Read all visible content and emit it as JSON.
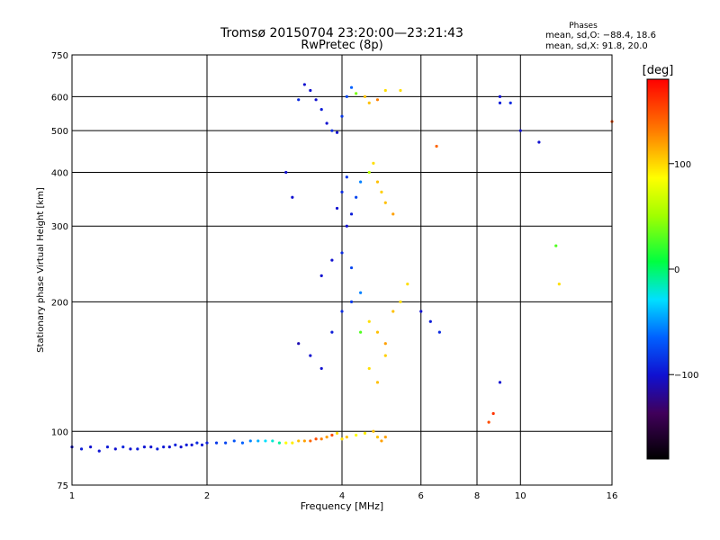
{
  "chart_data": {
    "type": "scatter",
    "title": "Tromsø 20150704 23:20:00—23:21:43",
    "subtitle": "RwPretec (8p)",
    "xlabel": "Frequency [MHz]",
    "ylabel": "Stationary phase Virtual Height [km]",
    "x_scale": "log",
    "y_scale": "log",
    "xlim": [
      1,
      16
    ],
    "ylim": [
      75,
      750
    ],
    "grid": true,
    "x_ticks": [
      1,
      2,
      4,
      6,
      8,
      10,
      16
    ],
    "x_tick_labels": [
      "1",
      "2",
      "4",
      "6",
      "8",
      "10",
      "16"
    ],
    "y_ticks": [
      75,
      100,
      200,
      300,
      400,
      500,
      600,
      750
    ],
    "y_tick_labels": [
      "75",
      "100",
      "200",
      "300",
      "400",
      "500",
      "600",
      "750"
    ],
    "legend": {
      "title": "Phases",
      "lines": [
        "mean, sd,O: −88.4, 18.6",
        "mean, sd,X:  91.8, 20.0"
      ]
    },
    "colorbar": {
      "label": "[deg]",
      "range": [
        -180,
        180
      ],
      "ticks": [
        -100,
        0,
        100
      ],
      "tick_labels": [
        "−100",
        "0",
        "100"
      ]
    },
    "series": [
      {
        "color_by": "phase_deg",
        "points": [
          [
            1.0,
            92,
            -100
          ],
          [
            1.05,
            91,
            -95
          ],
          [
            1.1,
            92,
            -100
          ],
          [
            1.15,
            90,
            -98
          ],
          [
            1.2,
            92,
            -96
          ],
          [
            1.25,
            91,
            -100
          ],
          [
            1.3,
            92,
            -92
          ],
          [
            1.35,
            91,
            -100
          ],
          [
            1.4,
            91,
            -95
          ],
          [
            1.45,
            92,
            -98
          ],
          [
            1.5,
            92,
            -100
          ],
          [
            1.55,
            91,
            -94
          ],
          [
            1.6,
            92,
            -97
          ],
          [
            1.65,
            92,
            -100
          ],
          [
            1.7,
            93,
            -93
          ],
          [
            1.75,
            92,
            -100
          ],
          [
            1.8,
            93,
            -95
          ],
          [
            1.85,
            93,
            -98
          ],
          [
            1.9,
            94,
            -90
          ],
          [
            1.95,
            93,
            -96
          ],
          [
            2.0,
            94,
            -94
          ],
          [
            2.1,
            94,
            -85
          ],
          [
            2.2,
            94,
            -80
          ],
          [
            2.3,
            95,
            -75
          ],
          [
            2.4,
            94,
            -70
          ],
          [
            2.5,
            95,
            -60
          ],
          [
            2.6,
            95,
            -45
          ],
          [
            2.7,
            95,
            -30
          ],
          [
            2.8,
            95,
            -20
          ],
          [
            2.9,
            94,
            -10
          ],
          [
            3.0,
            94,
            90
          ],
          [
            3.1,
            94,
            95
          ],
          [
            3.2,
            95,
            110
          ],
          [
            3.3,
            95,
            120
          ],
          [
            3.4,
            95,
            140
          ],
          [
            3.5,
            96,
            150
          ],
          [
            3.6,
            96,
            130
          ],
          [
            3.7,
            97,
            120
          ],
          [
            3.8,
            98,
            150
          ],
          [
            3.9,
            99,
            100
          ],
          [
            4.0,
            96,
            100
          ],
          [
            4.1,
            97,
            110
          ],
          [
            4.3,
            98,
            90
          ],
          [
            4.5,
            99,
            95
          ],
          [
            4.8,
            97,
            110
          ],
          [
            5.0,
            97,
            120
          ],
          [
            3.5,
            590,
            -100
          ],
          [
            3.6,
            560,
            -95
          ],
          [
            3.7,
            520,
            -100
          ],
          [
            3.8,
            500,
            -90
          ],
          [
            3.9,
            495,
            -100
          ],
          [
            4.0,
            540,
            -85
          ],
          [
            4.1,
            600,
            -80
          ],
          [
            4.2,
            630,
            -70
          ],
          [
            4.3,
            610,
            40
          ],
          [
            4.5,
            600,
            110
          ],
          [
            4.6,
            580,
            110
          ],
          [
            4.8,
            590,
            130
          ],
          [
            5.0,
            620,
            100
          ],
          [
            5.4,
            620,
            100
          ],
          [
            9.0,
            600,
            -100
          ],
          [
            9.0,
            580,
            -95
          ],
          [
            9.5,
            580,
            -90
          ],
          [
            3.3,
            640,
            -100
          ],
          [
            3.4,
            620,
            -100
          ],
          [
            3.2,
            590,
            -90
          ],
          [
            4.1,
            300,
            -100
          ],
          [
            4.2,
            320,
            -95
          ],
          [
            4.3,
            350,
            -80
          ],
          [
            4.4,
            380,
            -60
          ],
          [
            4.6,
            400,
            60
          ],
          [
            4.7,
            420,
            100
          ],
          [
            4.8,
            380,
            110
          ],
          [
            4.9,
            360,
            105
          ],
          [
            5.0,
            340,
            110
          ],
          [
            5.2,
            320,
            120
          ],
          [
            3.9,
            330,
            -100
          ],
          [
            4.0,
            360,
            -90
          ],
          [
            4.1,
            390,
            -85
          ],
          [
            3.0,
            400,
            -100
          ],
          [
            3.1,
            350,
            -100
          ],
          [
            3.2,
            160,
            -110
          ],
          [
            3.4,
            150,
            -100
          ],
          [
            3.6,
            140,
            -100
          ],
          [
            3.8,
            170,
            -95
          ],
          [
            4.0,
            190,
            -90
          ],
          [
            4.2,
            200,
            -85
          ],
          [
            4.4,
            210,
            -60
          ],
          [
            4.6,
            180,
            100
          ],
          [
            4.8,
            170,
            110
          ],
          [
            5.0,
            160,
            120
          ],
          [
            5.2,
            190,
            110
          ],
          [
            5.4,
            200,
            100
          ],
          [
            5.6,
            220,
            100
          ],
          [
            6.0,
            190,
            -100
          ],
          [
            6.3,
            180,
            -95
          ],
          [
            6.6,
            170,
            -90
          ],
          [
            3.6,
            230,
            -100
          ],
          [
            3.8,
            250,
            -100
          ],
          [
            4.0,
            260,
            -90
          ],
          [
            4.2,
            240,
            -80
          ],
          [
            4.4,
            170,
            30
          ],
          [
            4.6,
            140,
            100
          ],
          [
            4.8,
            130,
            110
          ],
          [
            5.0,
            150,
            105
          ],
          [
            4.7,
            100,
            110
          ],
          [
            4.9,
            95,
            120
          ],
          [
            8.5,
            105,
            150
          ],
          [
            8.7,
            110,
            160
          ],
          [
            9.0,
            130,
            -100
          ],
          [
            12.0,
            270,
            30
          ],
          [
            12.2,
            220,
            100
          ],
          [
            16.0,
            525,
            150
          ],
          [
            10.0,
            500,
            -100
          ],
          [
            11.0,
            470,
            -100
          ],
          [
            6.5,
            460,
            140
          ]
        ]
      }
    ]
  }
}
